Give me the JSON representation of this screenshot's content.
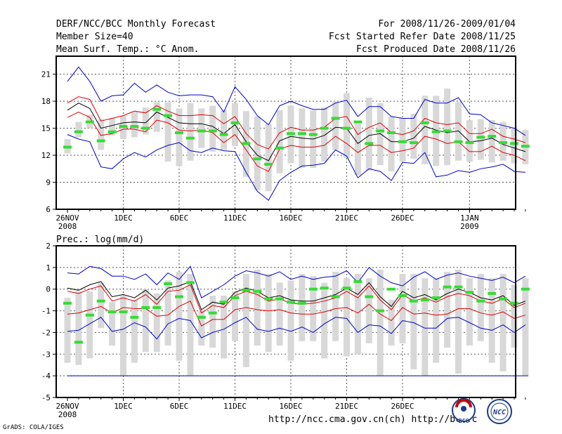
{
  "header": {
    "title": "DERF/NCC/BCC Monthly Forecast",
    "member": "Member Size=40",
    "variable": "Mean Surf. Temp.: °C Anom.",
    "period": "For 2008/11/26-2009/01/04",
    "started": "Fcst Started Refer Date 2008/11/25",
    "produced": "Fcst Produced Date 2008/11/26"
  },
  "footer": {
    "credit": "GrADS: COLA/IGES",
    "links": "http://ncc.cma.gov.cn(ch)   http://bcc.c"
  },
  "logos": {
    "bcc_text": "BCC",
    "ncc_text": "NCC"
  },
  "colors": {
    "envelope": "#0000cc",
    "spread": "#dd0000",
    "mean": "#000000",
    "obs": "#33dd33",
    "box": "#d8d8d8",
    "baseline": "#0000cc"
  },
  "chart_data": [
    {
      "type": "line",
      "label": "",
      "ylim": [
        6,
        23
      ],
      "yticks": [
        6,
        9,
        12,
        15,
        18,
        21
      ],
      "xticks": [
        {
          "day": 0,
          "label": "26NOV",
          "sub": "2008"
        },
        {
          "day": 5,
          "label": "1DEC",
          "sub": ""
        },
        {
          "day": 10,
          "label": "6DEC",
          "sub": ""
        },
        {
          "day": 15,
          "label": "11DEC",
          "sub": ""
        },
        {
          "day": 20,
          "label": "16DEC",
          "sub": ""
        },
        {
          "day": 25,
          "label": "21DEC",
          "sub": ""
        },
        {
          "day": 30,
          "label": "26DEC",
          "sub": ""
        },
        {
          "day": 36,
          "label": "1JAN",
          "sub": "2009"
        }
      ],
      "max": [
        20.2,
        21.8,
        20.2,
        18.0,
        18.6,
        18.7,
        20.0,
        19.0,
        19.8,
        19.0,
        18.6,
        18.7,
        18.7,
        18.5,
        16.8,
        19.6,
        18.2,
        16.4,
        15.4,
        17.5,
        18.0,
        17.5,
        17.1,
        17.1,
        17.8,
        18.1,
        16.3,
        17.4,
        17.4,
        16.3,
        16.1,
        16.1,
        18.2,
        17.8,
        17.8,
        18.4,
        16.6,
        16.5,
        15.6,
        15.3,
        15.0,
        14.2
      ],
      "p_upper": [
        17.8,
        18.5,
        18.2,
        15.8,
        16.1,
        16.4,
        16.9,
        16.7,
        17.5,
        16.9,
        16.4,
        16.4,
        16.5,
        16.4,
        15.5,
        16.3,
        14.4,
        13.2,
        12.7,
        14.5,
        15.1,
        14.8,
        14.8,
        15.1,
        16.1,
        16.3,
        14.3,
        15.1,
        15.6,
        14.5,
        14.3,
        14.7,
        16.1,
        15.6,
        15.4,
        15.6,
        14.4,
        14.4,
        14.9,
        14.1,
        13.8,
        13.4
      ],
      "mean": [
        17.0,
        17.8,
        17.2,
        15.0,
        15.3,
        15.6,
        15.7,
        15.6,
        16.8,
        16.2,
        15.6,
        15.5,
        15.5,
        15.2,
        14.4,
        15.4,
        13.5,
        12.0,
        11.4,
        13.6,
        14.1,
        13.9,
        13.8,
        14.2,
        15.1,
        15.0,
        13.3,
        14.2,
        14.4,
        13.5,
        13.5,
        13.9,
        15.2,
        14.8,
        14.5,
        14.7,
        13.5,
        13.6,
        13.9,
        13.2,
        12.8,
        12.4
      ],
      "p_lower": [
        16.2,
        16.8,
        16.2,
        14.2,
        14.4,
        14.9,
        14.9,
        14.6,
        15.9,
        15.6,
        14.8,
        14.7,
        14.8,
        14.5,
        13.4,
        14.3,
        12.6,
        10.8,
        10.2,
        12.7,
        13.1,
        12.9,
        12.9,
        13.1,
        14.1,
        13.3,
        12.3,
        13.1,
        13.1,
        12.3,
        12.5,
        12.8,
        14.1,
        13.8,
        13.3,
        13.5,
        12.4,
        12.4,
        13.0,
        12.3,
        12.0,
        11.4
      ],
      "min": [
        14.3,
        13.8,
        13.5,
        10.7,
        10.5,
        11.6,
        12.3,
        11.8,
        12.6,
        13.1,
        13.4,
        12.5,
        12.3,
        12.8,
        12.5,
        12.4,
        10.1,
        8.0,
        7.0,
        9.2,
        10.1,
        10.8,
        10.9,
        11.1,
        12.6,
        11.9,
        9.5,
        10.5,
        10.2,
        9.2,
        11.2,
        11.1,
        12.3,
        9.6,
        9.8,
        10.3,
        10.1,
        10.5,
        10.7,
        11.0,
        10.2,
        10.1
      ],
      "box_top": [
        13.8,
        15.7,
        16.5,
        16.0,
        16.1,
        16.4,
        16.8,
        17.3,
        17.9,
        17.9,
        17.2,
        17.8,
        17.2,
        17.5,
        17.0,
        17.8,
        16.9,
        16.3,
        15.5,
        17.0,
        17.5,
        17.2,
        17.0,
        17.3,
        18.0,
        18.9,
        15.5,
        18.4,
        17.8,
        16.3,
        16.1,
        16.6,
        18.6,
        18.6,
        19.4,
        17.9,
        15.9,
        16.0,
        15.9,
        15.7,
        15.1,
        14.8
      ],
      "box_bottom": [
        12.2,
        14.0,
        15.0,
        12.6,
        14.2,
        13.8,
        14.0,
        14.3,
        14.6,
        11.3,
        10.8,
        11.4,
        12.8,
        12.4,
        12.6,
        13.0,
        9.6,
        8.1,
        8.0,
        10.0,
        11.1,
        10.6,
        10.6,
        11.3,
        12.6,
        11.7,
        9.8,
        10.3,
        10.9,
        10.2,
        11.3,
        11.6,
        11.0,
        10.8,
        10.9,
        11.4,
        11.3,
        11.5,
        11.2,
        11.4,
        11.1,
        11.0
      ],
      "obs": [
        12.9,
        14.6,
        15.7,
        13.6,
        14.6,
        15.2,
        15.2,
        15.0,
        17.1,
        16.4,
        14.5,
        13.9,
        14.7,
        14.7,
        14.3,
        15.6,
        13.3,
        11.6,
        11.0,
        12.8,
        14.4,
        14.4,
        14.3,
        15.0,
        16.1,
        15.0,
        15.7,
        13.3,
        14.7,
        14.5,
        13.5,
        13.4,
        15.6,
        14.6,
        14.7,
        13.5,
        13.4,
        14.0,
        14.1,
        13.4,
        13.3,
        13.0
      ]
    },
    {
      "type": "line",
      "label": "Prec.: log(mm/d)",
      "ylim": [
        -5,
        2
      ],
      "yticks": [
        -5,
        -4,
        -3,
        -2,
        -1,
        0,
        1,
        2
      ],
      "xticks": [
        {
          "day": 0,
          "label": "26NOV",
          "sub": "2008"
        },
        {
          "day": 5,
          "label": "1DEC",
          "sub": ""
        },
        {
          "day": 10,
          "label": "6DEC",
          "sub": ""
        },
        {
          "day": 15,
          "label": "11DEC",
          "sub": ""
        },
        {
          "day": 20,
          "label": "16DEC",
          "sub": ""
        },
        {
          "day": 25,
          "label": "21DEC",
          "sub": ""
        },
        {
          "day": 30,
          "label": "26DEC",
          "sub": ""
        }
      ],
      "baseline": -4,
      "max": [
        0.75,
        0.7,
        1.05,
        0.95,
        0.6,
        0.6,
        0.45,
        0.7,
        0.2,
        0.75,
        0.45,
        1.05,
        -0.4,
        -0.1,
        0.2,
        0.6,
        0.85,
        0.75,
        0.6,
        0.8,
        0.45,
        0.6,
        0.45,
        0.55,
        0.6,
        0.85,
        0.3,
        1.0,
        0.6,
        0.3,
        0.15,
        0.55,
        0.8,
        0.45,
        0.65,
        0.75,
        0.6,
        0.5,
        0.4,
        0.55,
        0.3,
        0.6
      ],
      "mean": [
        0.05,
        -0.05,
        0.2,
        0.35,
        -0.35,
        -0.25,
        -0.4,
        -0.05,
        -0.5,
        0.05,
        0.15,
        0.35,
        -0.95,
        -0.6,
        -0.7,
        -0.15,
        0.05,
        -0.1,
        -0.4,
        -0.3,
        -0.5,
        -0.55,
        -0.55,
        -0.4,
        -0.25,
        0.05,
        -0.25,
        0.3,
        -0.35,
        -0.8,
        -0.1,
        -0.4,
        -0.25,
        -0.5,
        -0.2,
        0.0,
        -0.15,
        -0.4,
        -0.5,
        -0.3,
        -0.75,
        -0.55
      ],
      "p_upper": [
        -0.1,
        -0.2,
        0.0,
        0.15,
        -0.55,
        -0.4,
        -0.55,
        -0.25,
        -0.7,
        -0.1,
        -0.05,
        0.2,
        -1.1,
        -0.75,
        -0.85,
        -0.3,
        -0.1,
        -0.25,
        -0.55,
        -0.45,
        -0.65,
        -0.7,
        -0.65,
        -0.55,
        -0.4,
        -0.1,
        -0.4,
        0.15,
        -0.5,
        -0.95,
        -0.25,
        -0.55,
        -0.4,
        -0.6,
        -0.35,
        -0.2,
        -0.3,
        -0.55,
        -0.65,
        -0.45,
        -0.85,
        -0.65
      ],
      "p_lower": [
        -1.15,
        -1.1,
        -0.95,
        -0.8,
        -1.1,
        -0.85,
        -0.9,
        -0.9,
        -1.25,
        -1.2,
        -0.8,
        -0.55,
        -1.7,
        -1.4,
        -1.4,
        -0.95,
        -0.85,
        -0.95,
        -1.0,
        -0.95,
        -1.1,
        -1.15,
        -1.15,
        -1.05,
        -0.9,
        -0.85,
        -1.1,
        -0.7,
        -1.15,
        -1.45,
        -0.85,
        -1.15,
        -1.1,
        -1.2,
        -1.15,
        -0.9,
        -0.9,
        -1.1,
        -1.2,
        -1.05,
        -1.35,
        -1.2
      ],
      "min": [
        -1.95,
        -1.9,
        -1.6,
        -1.3,
        -1.95,
        -1.85,
        -1.55,
        -1.75,
        -2.3,
        -1.6,
        -1.35,
        -1.45,
        -2.25,
        -2.0,
        -1.85,
        -1.55,
        -1.3,
        -1.85,
        -1.95,
        -1.8,
        -1.95,
        -1.75,
        -2.0,
        -1.6,
        -1.3,
        -1.35,
        -2.0,
        -1.65,
        -1.7,
        -2.05,
        -1.45,
        -1.55,
        -1.8,
        -1.8,
        -1.35,
        -1.3,
        -1.55,
        -1.8,
        -1.9,
        -1.65,
        -2.0,
        -1.65
      ],
      "box_top": [
        -0.4,
        -0.1,
        -0.1,
        0.3,
        -0.6,
        -0.3,
        -0.5,
        0.0,
        -0.2,
        0.4,
        0.8,
        0.7,
        -1.0,
        -0.3,
        -0.3,
        -0.1,
        0.7,
        0.9,
        0.7,
        0.3,
        0.4,
        0.7,
        0.6,
        0.3,
        0.8,
        0.5,
        0.7,
        0.5,
        0.9,
        -0.5,
        0.7,
        0.7,
        0.5,
        0.5,
        0.8,
        0.9,
        0.5,
        0.7,
        0.5,
        0.7,
        0.2,
        0.5
      ],
      "box_bottom": [
        -3.4,
        -3.5,
        -3.2,
        -1.8,
        -2.6,
        -4.0,
        -3.4,
        -2.9,
        -2.9,
        -2.6,
        -3.3,
        -4.0,
        -2.6,
        -2.7,
        -3.2,
        -2.4,
        -3.6,
        -2.6,
        -2.9,
        -2.6,
        -3.3,
        -2.4,
        -2.4,
        -3.2,
        -2.4,
        -3.1,
        -3.0,
        -2.5,
        -4.0,
        -2.6,
        -2.5,
        -3.7,
        -4.0,
        -3.4,
        -2.7,
        -3.9,
        -2.6,
        -2.4,
        -3.4,
        -3.8,
        -2.7,
        -4.0
      ],
      "obs": [
        -0.65,
        -2.45,
        -1.2,
        -0.55,
        -1.05,
        -1.05,
        -1.3,
        -0.85,
        -0.85,
        0.25,
        -0.35,
        0.3,
        -1.3,
        -1.1,
        -0.6,
        -0.4,
        -0.05,
        -0.1,
        -0.45,
        -0.45,
        -0.6,
        -0.65,
        0.0,
        0.05,
        -0.35,
        0.05,
        0.35,
        -0.35,
        -1.0,
        0.0,
        -0.3,
        -0.55,
        -0.5,
        -0.4,
        0.1,
        0.1,
        -0.15,
        -0.55,
        -0.2,
        -0.45,
        -0.65,
        0.0
      ]
    }
  ]
}
